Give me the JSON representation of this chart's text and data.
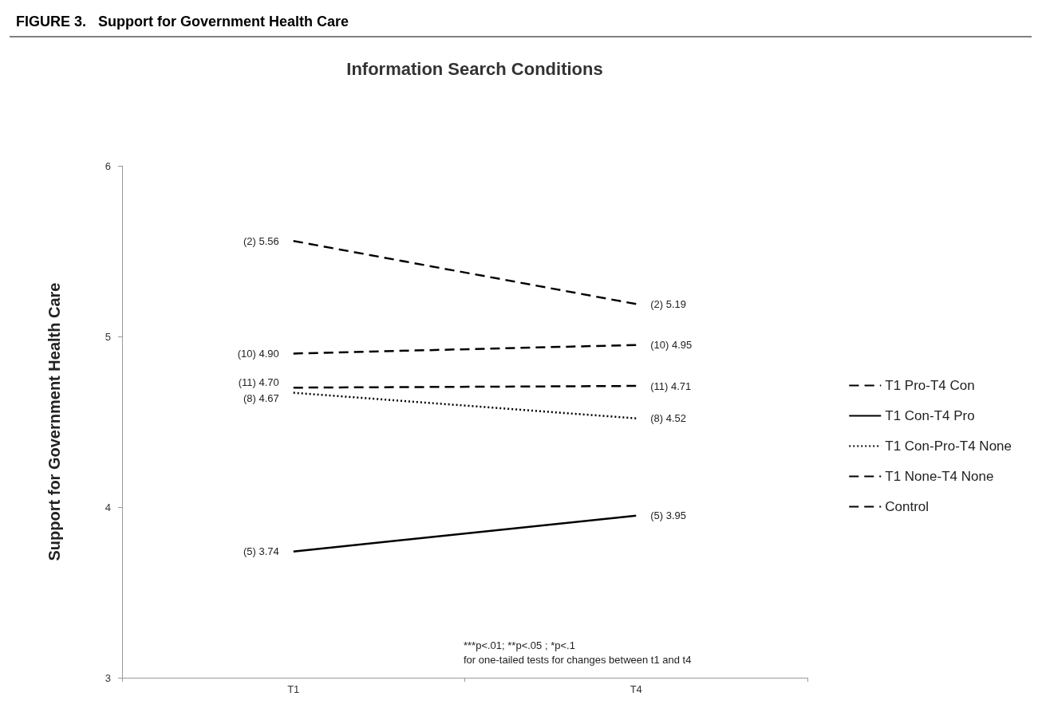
{
  "chart_data": {
    "type": "line",
    "title": "FIGURE 3.   Support for Government Health Care",
    "subtitle": "Information Search Conditions",
    "ylabel": "Support for Government Health Care",
    "categories": [
      "T1",
      "T4"
    ],
    "series": [
      {
        "name": "T1 Pro-T4 Con",
        "color": "#000000",
        "line_style": "dashed",
        "values": [
          5.56,
          5.19
        ],
        "value_labels": [
          "(2) 5.56",
          "(2) 5.19"
        ]
      },
      {
        "name": "T1 Con-T4 Pro",
        "color": "#000000",
        "line_style": "solid",
        "values": [
          3.74,
          3.95
        ],
        "value_labels": [
          "(5) 3.74",
          "(5) 3.95"
        ]
      },
      {
        "name": "T1 Con-Pro-T4 None",
        "color": "#000000",
        "line_style": "dotted",
        "values": [
          4.67,
          4.52
        ],
        "value_labels": [
          "(8) 4.67",
          "(8) 4.52"
        ]
      },
      {
        "name": "T1 None-T4 None",
        "color": "#000000",
        "line_style": "dashed",
        "values": [
          4.7,
          4.71
        ],
        "value_labels": [
          "(11) 4.70",
          "(11) 4.71"
        ]
      },
      {
        "name": "Control",
        "color": "#000000",
        "line_style": "dashed",
        "values": [
          4.9,
          4.95
        ],
        "value_labels": [
          "(10) 4.90",
          "(10) 4.95"
        ]
      }
    ],
    "ylim": [
      3,
      6
    ],
    "yticks": [
      3,
      4,
      5,
      6
    ],
    "grid": false,
    "legend": "right",
    "marker": "none",
    "annotations": [
      "***p<.01; **p<.05 ; *p<.1",
      "for one-tailed tests for changes between t1 and t4"
    ]
  }
}
